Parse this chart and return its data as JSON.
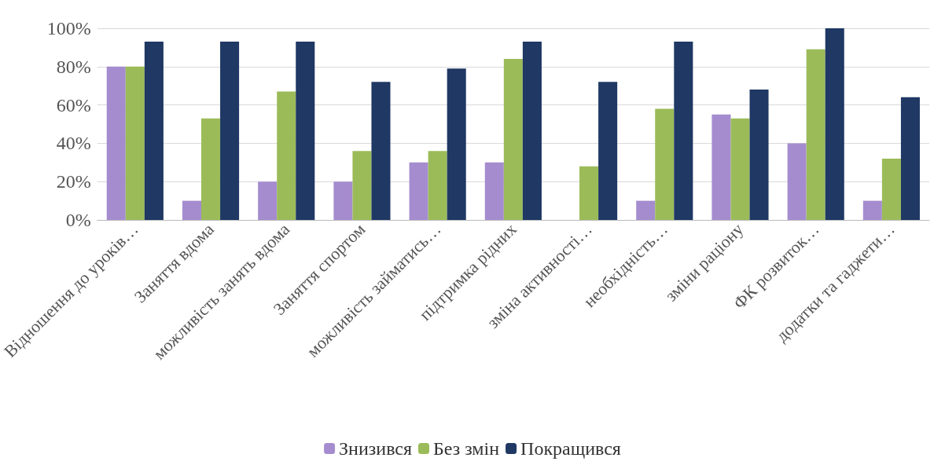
{
  "chart_data": {
    "type": "bar",
    "categories": [
      "Відношення до уроків…",
      "Заняття вдома",
      "можливість занять вдома",
      "Заняття спортом",
      "можливість займатись…",
      "підтримка рідних",
      "зміна активності…",
      "необхідність…",
      "зміни раціону",
      "ФК розвиток…",
      "додатки та гаджети…"
    ],
    "series": [
      {
        "name": "Знизився",
        "color": "#a58ccf",
        "values": [
          80,
          10,
          20,
          20,
          30,
          30,
          0,
          10,
          55,
          40,
          10
        ]
      },
      {
        "name": "Без змін",
        "color": "#9bbb59",
        "values": [
          80,
          53,
          67,
          36,
          36,
          84,
          28,
          58,
          53,
          89,
          32
        ]
      },
      {
        "name": "Покращився",
        "color": "#1f3864",
        "values": [
          93,
          93,
          93,
          72,
          79,
          93,
          72,
          93,
          68,
          100,
          64
        ]
      }
    ],
    "ylim": [
      0,
      100
    ],
    "yticks": [
      {
        "value": 0,
        "label": "0%"
      },
      {
        "value": 20,
        "label": "20%"
      },
      {
        "value": 40,
        "label": "40%"
      },
      {
        "value": 60,
        "label": "60%"
      },
      {
        "value": 80,
        "label": "80%"
      },
      {
        "value": 100,
        "label": "100%"
      }
    ],
    "grid": "y",
    "legend": "bottom"
  }
}
